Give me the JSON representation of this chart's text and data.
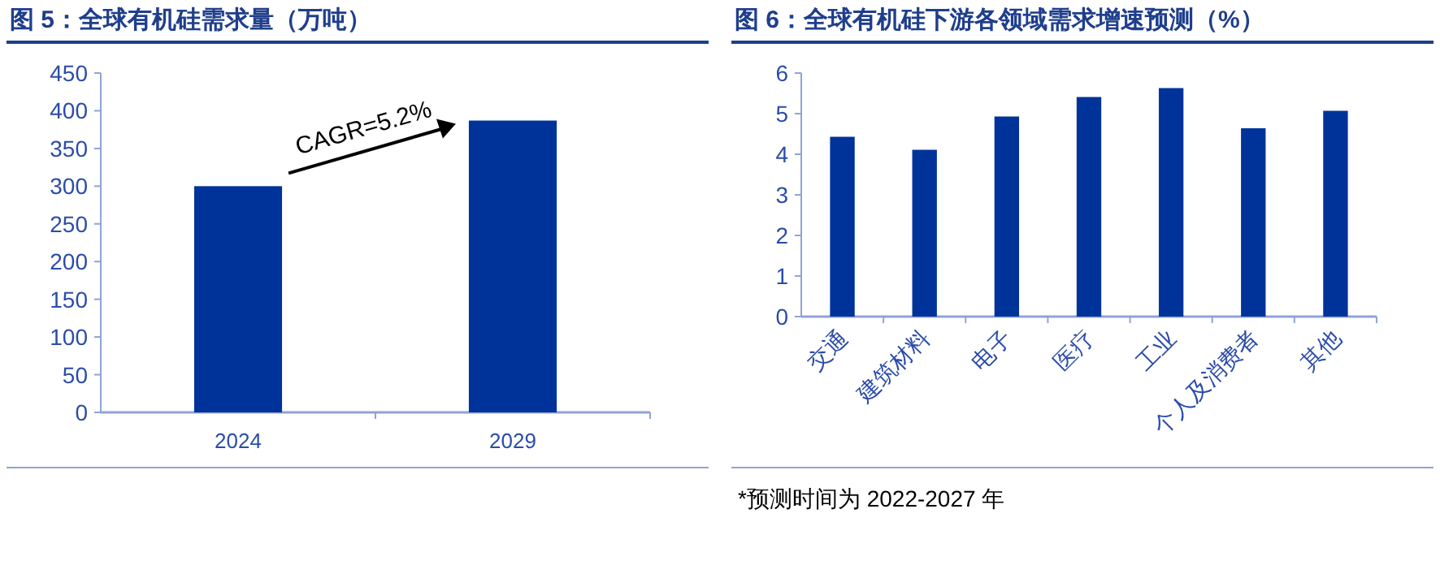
{
  "chart_data": [
    {
      "type": "bar",
      "title": "图 5：全球有机硅需求量（万吨）",
      "categories": [
        "2024",
        "2029"
      ],
      "values": [
        300,
        387
      ],
      "color": "#003399",
      "ylim": [
        0,
        450
      ],
      "yticks": [
        0,
        50,
        100,
        150,
        200,
        250,
        300,
        350,
        400,
        450
      ],
      "annotations": [
        "CAGR=5.2%"
      ]
    },
    {
      "type": "bar",
      "title": "图 6：全球有机硅下游各领域需求增速预测（%）",
      "categories": [
        "交通",
        "建筑材料",
        "电子",
        "医疗",
        "工业",
        "个人及消费者",
        "其他"
      ],
      "values": [
        4.43,
        4.11,
        4.93,
        5.41,
        5.63,
        4.64,
        5.07
      ],
      "color": "#003399",
      "ylim": [
        0,
        6
      ],
      "yticks": [
        0,
        1,
        2,
        3,
        4,
        5,
        6
      ],
      "annotations": [
        "*预测时间为 2022-2027 年"
      ]
    }
  ]
}
